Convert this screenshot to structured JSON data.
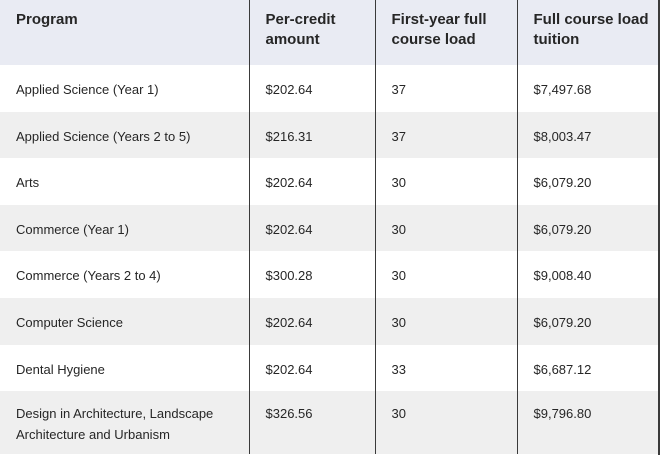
{
  "table": {
    "headers": [
      "Program",
      "Per-credit amount",
      "First-year full course load",
      "Full course load tuition"
    ],
    "rows": [
      [
        "Applied Science (Year 1)",
        "$202.64",
        "37",
        "$7,497.68"
      ],
      [
        "Applied Science (Years 2 to 5)",
        "$216.31",
        "37",
        "$8,003.47"
      ],
      [
        "Arts",
        "$202.64",
        "30",
        "$6,079.20"
      ],
      [
        "Commerce (Year 1)",
        "$202.64",
        "30",
        "$6,079.20"
      ],
      [
        "Commerce (Years 2 to 4)",
        "$300.28",
        "30",
        "$9,008.40"
      ],
      [
        "Computer Science",
        "$202.64",
        "30",
        "$6,079.20"
      ],
      [
        "Dental Hygiene",
        "$202.64",
        "33",
        "$6,687.12"
      ],
      [
        "Design in Architecture, Landscape Architecture and Urbanism",
        "$326.56",
        "30",
        "$9,796.80"
      ]
    ]
  },
  "colors": {
    "header_bg": "#e9ebf3",
    "stripe_bg": "#efefef",
    "row_bg": "#ffffff",
    "divider": "#3a3a3a",
    "text": "#262626"
  }
}
